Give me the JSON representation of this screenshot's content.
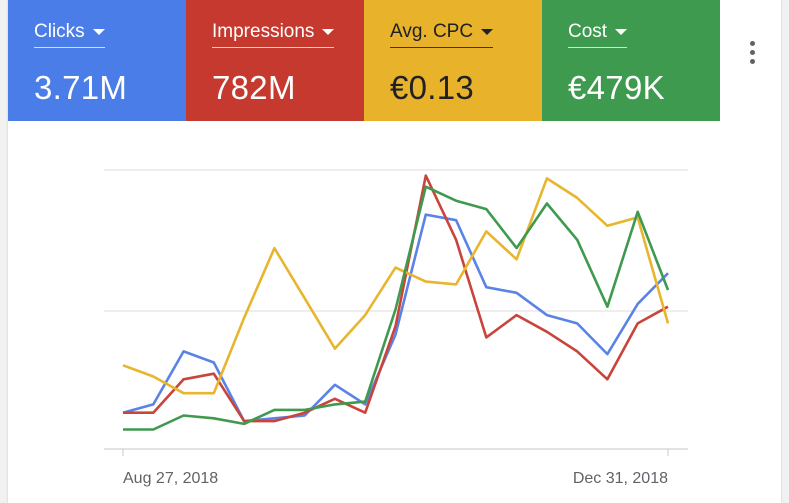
{
  "metrics": [
    {
      "label": "Clicks",
      "value": "3.71M",
      "color": "#4a7de8"
    },
    {
      "label": "Impressions",
      "value": "782M",
      "color": "#c5392f"
    },
    {
      "label": "Avg. CPC",
      "value": "€0.13",
      "color": "#e8b22a"
    },
    {
      "label": "Cost",
      "value": "€479K",
      "color": "#3e9a4f"
    }
  ],
  "menu": {
    "icon": "more-vert-icon"
  },
  "chart_data": {
    "type": "line",
    "x_labels": [
      "Aug 27, 2018",
      "Dec 31, 2018"
    ],
    "grid": true,
    "ylim": [
      0,
      1
    ],
    "series": [
      {
        "color": "#5b83e6",
        "values": [
          0.13,
          0.16,
          0.35,
          0.31,
          0.1,
          0.11,
          0.12,
          0.23,
          0.16,
          0.41,
          0.84,
          0.82,
          0.58,
          0.56,
          0.48,
          0.45,
          0.34,
          0.52,
          0.63
        ]
      },
      {
        "color": "#c9443a",
        "values": [
          0.13,
          0.13,
          0.25,
          0.27,
          0.1,
          0.1,
          0.13,
          0.18,
          0.13,
          0.44,
          0.98,
          0.75,
          0.4,
          0.48,
          0.42,
          0.35,
          0.25,
          0.45,
          0.51
        ]
      },
      {
        "color": "#e8b52e",
        "values": [
          0.3,
          0.26,
          0.2,
          0.2,
          0.47,
          0.72,
          0.54,
          0.36,
          0.48,
          0.65,
          0.6,
          0.59,
          0.78,
          0.68,
          0.97,
          0.9,
          0.8,
          0.83,
          0.45
        ]
      },
      {
        "color": "#3f9a50",
        "values": [
          0.07,
          0.07,
          0.12,
          0.11,
          0.09,
          0.14,
          0.14,
          0.16,
          0.17,
          0.5,
          0.94,
          0.89,
          0.86,
          0.72,
          0.88,
          0.75,
          0.51,
          0.85,
          0.57
        ]
      }
    ]
  }
}
